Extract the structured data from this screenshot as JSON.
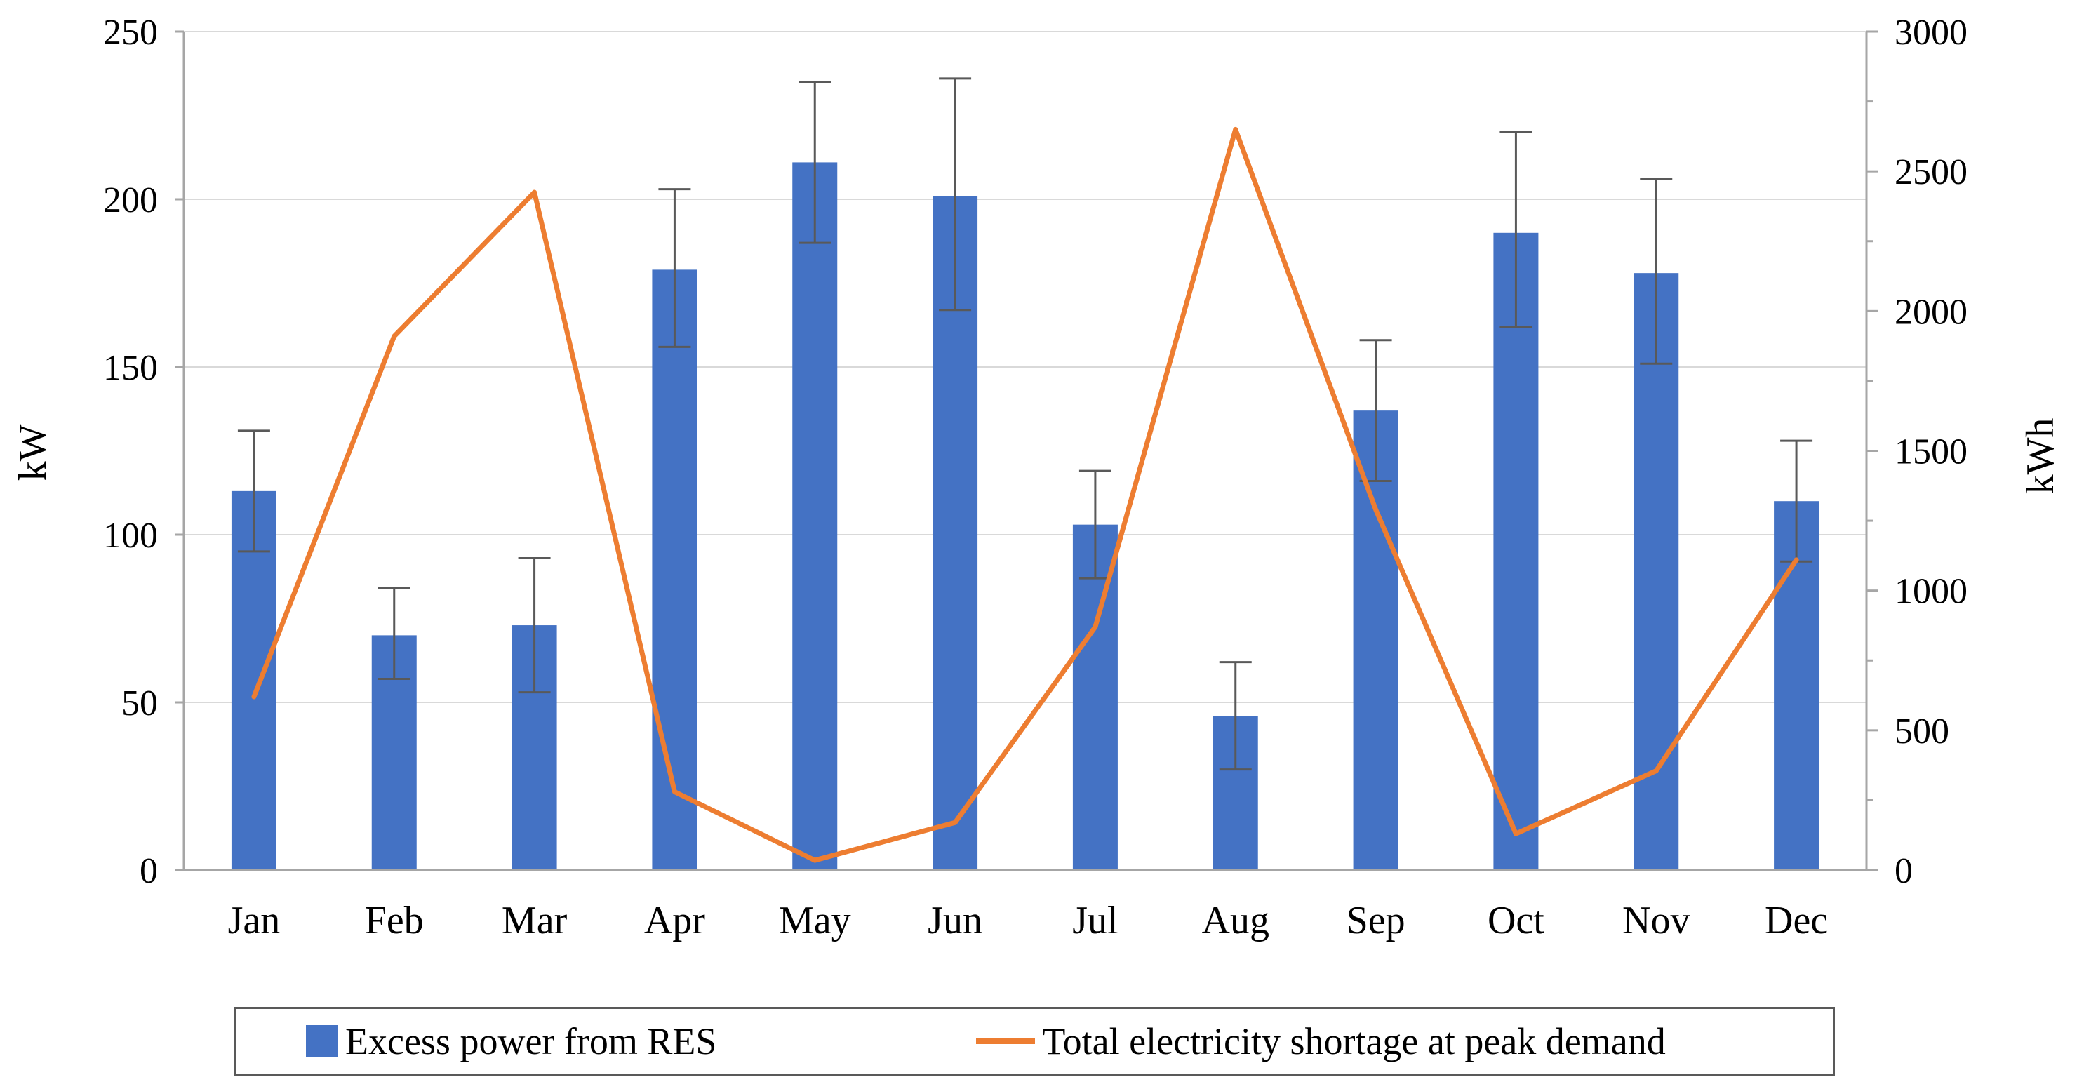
{
  "chart_data": {
    "type": "bar",
    "subtype": "combo-bar-line-dual-axis",
    "categories": [
      "Jan",
      "Feb",
      "Mar",
      "Apr",
      "May",
      "Jun",
      "Jul",
      "Aug",
      "Sep",
      "Oct",
      "Nov",
      "Dec"
    ],
    "series": [
      {
        "name": "Excess power from RES",
        "type": "bar",
        "axis": "left",
        "unit": "kW",
        "color": "#4472C4",
        "values": [
          113,
          70,
          73,
          179,
          211,
          201,
          103,
          46,
          137,
          190,
          178,
          110
        ],
        "error_high": [
          131,
          84,
          93,
          203,
          235,
          236,
          119,
          62,
          158,
          220,
          206,
          128
        ],
        "error_low": [
          95,
          57,
          53,
          156,
          187,
          167,
          87,
          30,
          116,
          162,
          151,
          92
        ]
      },
      {
        "name": "Total electricity shortage at peak demand",
        "type": "line",
        "axis": "right",
        "unit": "kWh",
        "color": "#ED7D31",
        "values": [
          620,
          1910,
          2425,
          280,
          35,
          170,
          870,
          2650,
          1290,
          130,
          355,
          1110
        ]
      }
    ],
    "left_axis": {
      "label": "kW",
      "min": 0,
      "max": 250,
      "step": 50,
      "ticks": [
        0,
        50,
        100,
        150,
        200,
        250
      ]
    },
    "right_axis": {
      "label": "kWh",
      "min": 0,
      "max": 3000,
      "step": 500,
      "minor_step": 250,
      "ticks": [
        0,
        500,
        1000,
        1500,
        2000,
        2500,
        3000
      ]
    },
    "grid": "horizontal-major",
    "legend_position": "bottom",
    "style": {
      "gridline_color": "#D9D9D9",
      "axis_color": "#A6A6A6",
      "error_bar_color": "#595959",
      "background": "#FFFFFF",
      "text_color": "#000000"
    }
  }
}
